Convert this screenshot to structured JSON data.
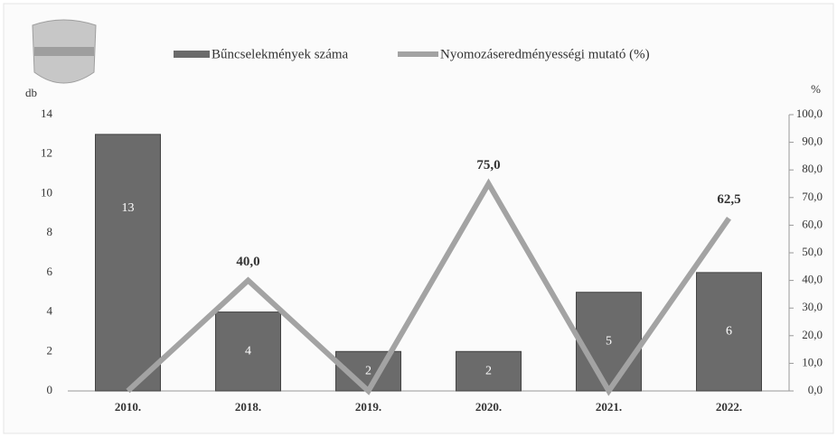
{
  "chart_data": {
    "type": "bar-line",
    "categories": [
      "2010.",
      "2018.",
      "2019.",
      "2020.",
      "2021.",
      "2022."
    ],
    "series": [
      {
        "name": "Bűncselekmények száma",
        "type": "bar",
        "color": "#6b6b6b",
        "values": [
          13,
          4,
          2,
          2,
          5,
          6
        ]
      },
      {
        "name": "Nyomozáseredményességi mutató (%)",
        "type": "line",
        "axis": "y2",
        "color": "#a3a3a3",
        "values": [
          0,
          40,
          0,
          75,
          0,
          62.5
        ],
        "value_labels": [
          null,
          "40,0",
          null,
          "75,0",
          null,
          "62,5"
        ]
      }
    ],
    "ylabel": "db",
    "y2label": "%",
    "ylim": [
      0,
      14
    ],
    "yticks": [
      0,
      2,
      4,
      6,
      8,
      10,
      12,
      14
    ],
    "y2lim": [
      0,
      100
    ],
    "y2ticks": [
      {
        "value": 0,
        "label": "0,0"
      },
      {
        "value": 10,
        "label": "10,0"
      },
      {
        "value": 20,
        "label": "20,0"
      },
      {
        "value": 30,
        "label": "30,0"
      },
      {
        "value": 40,
        "label": "40,0"
      },
      {
        "value": 50,
        "label": "50,0"
      },
      {
        "value": 60,
        "label": "60,0"
      },
      {
        "value": 70,
        "label": "70,0"
      },
      {
        "value": 80,
        "label": "80,0"
      },
      {
        "value": 90,
        "label": "90,0"
      },
      {
        "value": 100,
        "label": "100,0"
      }
    ],
    "legend": "top"
  }
}
